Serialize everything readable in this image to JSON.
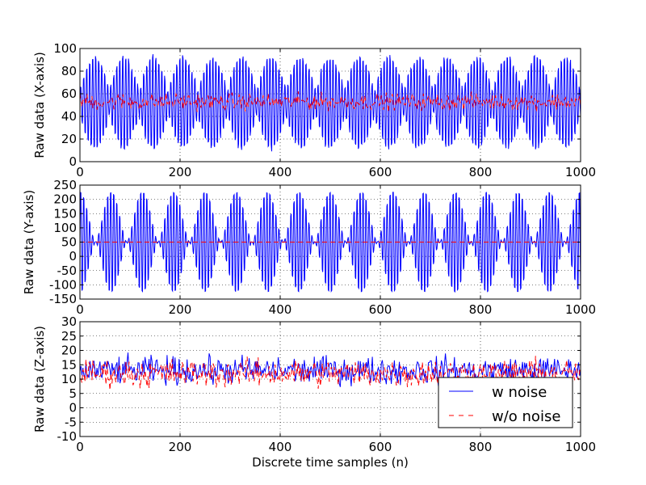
{
  "chart_data": [
    {
      "type": "line",
      "ylabel": "Raw data (X-axis)",
      "xlabel": "",
      "xlim": [
        0,
        1000
      ],
      "ylim": [
        0,
        100
      ],
      "xticks": [
        "0",
        "200",
        "400",
        "600",
        "800",
        "1000"
      ],
      "yticks": [
        "0",
        "20",
        "40",
        "60",
        "80",
        "100"
      ],
      "grid": true,
      "series": [
        {
          "color": "#0000ff",
          "style": "solid",
          "description_mean": 52,
          "description_peak_amplitude": 45,
          "bursts": 17,
          "carrier_period": 6
        },
        {
          "color": "#ff0000",
          "style": "dashed",
          "description_mean": 53,
          "description_noise_amplitude": 6
        }
      ]
    },
    {
      "type": "line",
      "ylabel": "Raw data (Y-axis)",
      "xlabel": "",
      "xlim": [
        0,
        1000
      ],
      "ylim": [
        -150,
        250
      ],
      "xticks": [
        "0",
        "200",
        "400",
        "600",
        "800",
        "1000"
      ],
      "yticks": [
        "-150",
        "-100",
        "-50",
        "0",
        "50",
        "100",
        "150",
        "200",
        "250"
      ],
      "grid": true,
      "series": [
        {
          "color": "#0000ff",
          "style": "solid",
          "description_mean": 50,
          "description_peak_amplitude": 200,
          "bursts": 16,
          "carrier_period": 6
        },
        {
          "color": "#ff0000",
          "style": "dashed",
          "description_mean": 50,
          "description_noise_amplitude": 0
        }
      ]
    },
    {
      "type": "line",
      "ylabel": "Raw data (Z-axis)",
      "xlabel": "Discrete time samples (n)",
      "xlim": [
        0,
        1000
      ],
      "ylim": [
        -10,
        30
      ],
      "xticks": [
        "0",
        "200",
        "400",
        "600",
        "800",
        "1000"
      ],
      "yticks": [
        "-10",
        "-5",
        "0",
        "5",
        "10",
        "15",
        "20",
        "25",
        "30"
      ],
      "grid": true,
      "legend": {
        "position": "lower-right",
        "entries": [
          {
            "label": "w noise",
            "color": "#0000ff",
            "style": "solid"
          },
          {
            "label": "w/o noise",
            "color": "#ff0000",
            "style": "dashed"
          }
        ]
      },
      "series": [
        {
          "name": "w noise",
          "color": "#0000ff",
          "style": "solid",
          "description_mean": 13,
          "description_noise_amplitude": 4
        },
        {
          "name": "w/o noise",
          "color": "#ff0000",
          "style": "dashed",
          "description_mean": 12,
          "description_noise_amplitude": 4
        }
      ]
    }
  ]
}
